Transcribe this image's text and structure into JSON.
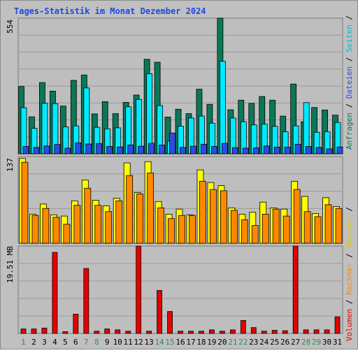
{
  "chart_data": [
    {
      "type": "bar",
      "title": "Tages-Statistik im Monat Dezember 2024",
      "categories": [
        "1",
        "2",
        "3",
        "4",
        "5",
        "6",
        "7",
        "8",
        "9",
        "10",
        "11",
        "12",
        "13",
        "14",
        "15",
        "16",
        "17",
        "18",
        "19",
        "20",
        "21",
        "22",
        "23",
        "24",
        "25",
        "26",
        "27",
        "28",
        "29",
        "30",
        "31"
      ],
      "weekend_days": [
        "1",
        "7",
        "8",
        "14",
        "15",
        "21",
        "22",
        "28",
        "29"
      ],
      "ymax_label": "554",
      "ylim": [
        0,
        554
      ],
      "right_axis_labels": [
        "Anfragen",
        "Dateien",
        "Seiten"
      ],
      "series": [
        {
          "name": "Anfragen",
          "color": "#0a7858",
          "values": [
            275,
            151,
            291,
            256,
            195,
            300,
            322,
            163,
            213,
            164,
            210,
            240,
            386,
            374,
            150,
            182,
            164,
            264,
            202,
            554,
            180,
            219,
            206,
            234,
            219,
            154,
            285,
            131,
            189,
            179,
            158
          ]
        },
        {
          "name": "Seiten",
          "color": "#00eaff",
          "values": [
            188,
            104,
            206,
            205,
            110,
            114,
            269,
            108,
            102,
            106,
            192,
            222,
            327,
            197,
            52,
            113,
            146,
            154,
            125,
            378,
            146,
            131,
            118,
            121,
            112,
            90,
            114,
            209,
            88,
            90,
            128
          ]
        },
        {
          "name": "Dateien",
          "color": "#2d4be3",
          "values": [
            30,
            26,
            32,
            38,
            23,
            45,
            40,
            42,
            30,
            28,
            36,
            31,
            43,
            36,
            85,
            26,
            31,
            39,
            30,
            43,
            25,
            23,
            24,
            32,
            27,
            27,
            39,
            30,
            26,
            20,
            28
          ]
        }
      ]
    },
    {
      "type": "bar",
      "ymax_label": "137",
      "ylim": [
        0,
        137
      ],
      "series": [
        {
          "name": "Besuche",
          "color": "#ffff00",
          "values": [
            134,
            46,
            62,
            45,
            43,
            67,
            100,
            68,
            59,
            71,
            127,
            80,
            129,
            66,
            46,
            54,
            45,
            116,
            96,
            91,
            56,
            46,
            49,
            65,
            56,
            54,
            98,
            74,
            47,
            72,
            58
          ]
        },
        {
          "name": "Rechner",
          "color": "#ff8800",
          "values": [
            128,
            44,
            55,
            41,
            30,
            60,
            87,
            60,
            50,
            67,
            107,
            78,
            111,
            56,
            39,
            44,
            44,
            98,
            85,
            83,
            52,
            37,
            28,
            46,
            54,
            43,
            85,
            50,
            42,
            61,
            55
          ]
        }
      ]
    },
    {
      "type": "bar",
      "ymax_label": "19.51 MB",
      "ylim": [
        0,
        19.51
      ],
      "series": [
        {
          "name": "Volumen",
          "color": "#e60000",
          "values": [
            1.0,
            1.0,
            1.2,
            18.1,
            0.4,
            4.3,
            14.5,
            0.5,
            1.0,
            0.8,
            0.5,
            19.5,
            0.5,
            9.6,
            4.9,
            0.5,
            0.5,
            0.5,
            0.8,
            0.5,
            0.8,
            2.9,
            1.3,
            0.5,
            0.7,
            0.6,
            19.5,
            0.8,
            0.8,
            0.8,
            3.7
          ]
        }
      ]
    }
  ],
  "right_axis_labels_lower": [
    "Volumen",
    "Rechner",
    "Besuche"
  ],
  "colors": {
    "background": "#c0c0c0",
    "panel": "#bebebe",
    "grid": "#9a9a9a",
    "title": "#1a48e8",
    "weekday_label": "#000000",
    "weekend_label": "#2e8b57",
    "label_anfragen": "#0a7858",
    "label_dateien": "#2d4be3",
    "label_seiten": "#00b8cc",
    "label_besuche": "#e6c800",
    "label_rechner": "#ff8800",
    "label_volumen": "#e60000"
  }
}
